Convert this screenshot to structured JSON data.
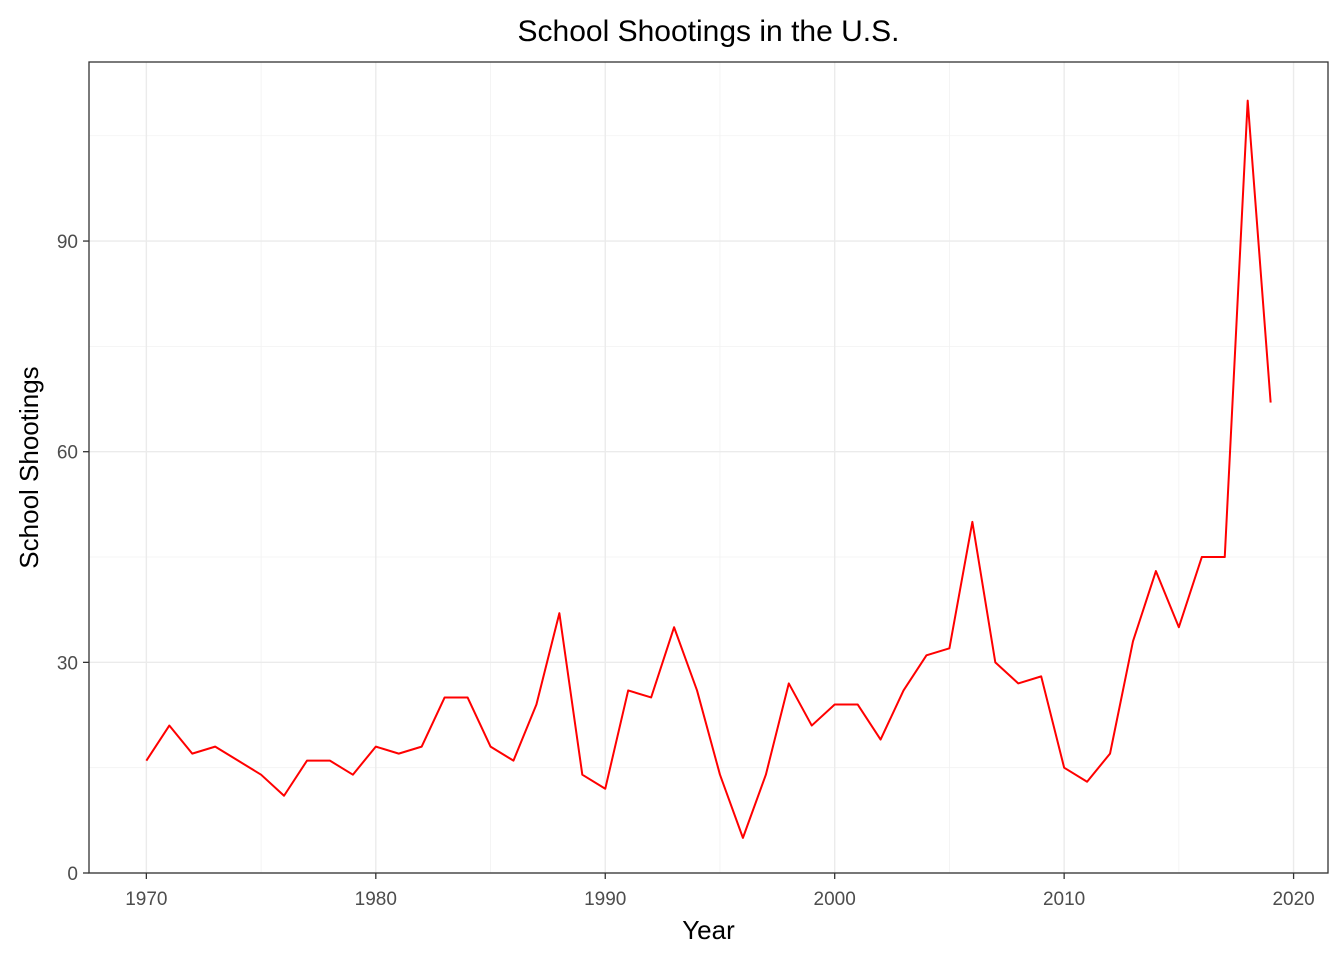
{
  "chart_data": {
    "type": "line",
    "title": "School Shootings in the U.S.",
    "xlabel": "Year",
    "ylabel": "School Shootings",
    "xlim": [
      1967.5,
      2021.5
    ],
    "ylim": [
      0,
      115.5
    ],
    "x_ticks": [
      1970,
      1980,
      1990,
      2000,
      2010,
      2020
    ],
    "y_ticks": [
      0,
      30,
      60,
      90
    ],
    "grid": true,
    "line_color": "#ff0000",
    "series": [
      {
        "x": [
          1970,
          1971,
          1972,
          1973,
          1974,
          1975,
          1976,
          1977,
          1978,
          1979,
          1980,
          1981,
          1982,
          1983,
          1984,
          1985,
          1986,
          1987,
          1988,
          1989,
          1990,
          1991,
          1992,
          1993,
          1994,
          1995,
          1996,
          1997,
          1998,
          1999,
          2000,
          2001,
          2002,
          2003,
          2004,
          2005,
          2006,
          2007,
          2008,
          2009,
          2010,
          2011,
          2012,
          2013,
          2014,
          2015,
          2016,
          2017,
          2018,
          2019
        ],
        "values": [
          16,
          21,
          17,
          18,
          16,
          14,
          11,
          16,
          16,
          14,
          18,
          17,
          18,
          25,
          25,
          18,
          16,
          24,
          37,
          14,
          12,
          26,
          25,
          35,
          26,
          14,
          5,
          14,
          27,
          21,
          24,
          24,
          19,
          26,
          31,
          32,
          50,
          30,
          27,
          28,
          15,
          13,
          17,
          33,
          43,
          35,
          45,
          45,
          110,
          67
        ]
      }
    ]
  }
}
